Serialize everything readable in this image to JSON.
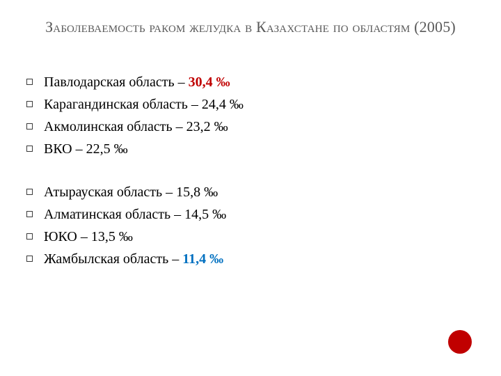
{
  "title": "Заболеваемость раком желудка в Казахстане по областям (2005)",
  "colors": {
    "background": "#ffffff",
    "title_text": "#595959",
    "body_text": "#000000",
    "bullet_border": "#3a3a3a",
    "highlight_red": "#c00000",
    "highlight_blue": "#0070c0",
    "accent_circle": "#c00000"
  },
  "typography": {
    "title_fontsize_pt": 17,
    "body_fontsize_pt": 15,
    "font_family": "Times New Roman"
  },
  "groups": [
    {
      "items": [
        {
          "prefix": "Павлодарская область – ",
          "value": "30,4 ‰",
          "highlight": "red"
        },
        {
          "prefix": "Карагандинская область – 24,4 ‰",
          "value": "",
          "highlight": null
        },
        {
          "prefix": "Акмолинская область – 23,2 ‰",
          "value": "",
          "highlight": null
        },
        {
          "prefix": "ВКО – 22,5 ‰",
          "value": "",
          "highlight": null
        }
      ]
    },
    {
      "items": [
        {
          "prefix": "Атырауская область – 15,8 ‰",
          "value": "",
          "highlight": null
        },
        {
          "prefix": "Алматинская область – 14,5 ‰",
          "value": "",
          "highlight": null
        },
        {
          "prefix": "ЮКО – 13,5 ‰",
          "value": "",
          "highlight": null
        },
        {
          "prefix": "Жамбылская область – ",
          "value": "11,4 ‰",
          "highlight": "blue"
        }
      ]
    }
  ]
}
